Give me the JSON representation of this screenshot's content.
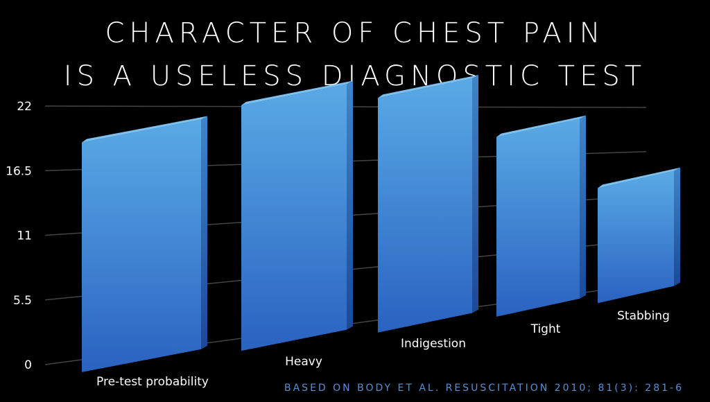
{
  "slide": {
    "title_line1": "CHARACTER OF CHEST PAIN",
    "title_line2": "IS A USELESS DIAGNOSTIC TEST",
    "source": "BASED ON BODY ET AL. RESUSCITATION 2010; 81(3): 281-6"
  },
  "chart_data": {
    "type": "bar",
    "categories": [
      "Pre-test probability",
      "Heavy",
      "Indigestion",
      "Tight",
      "Stabbing"
    ],
    "values": [
      19,
      20.3,
      19.4,
      14.9,
      9.6
    ],
    "y_ticks": [
      "0",
      "5.5",
      "11",
      "16.5",
      "22"
    ],
    "ylim": [
      0,
      22
    ],
    "grid": true,
    "perspective": "3d-skewed",
    "colors": {
      "bar_top": "#5aaae6",
      "bar_bottom": "#2a62c0",
      "grid": "#444444",
      "text": "#ffffff"
    }
  }
}
